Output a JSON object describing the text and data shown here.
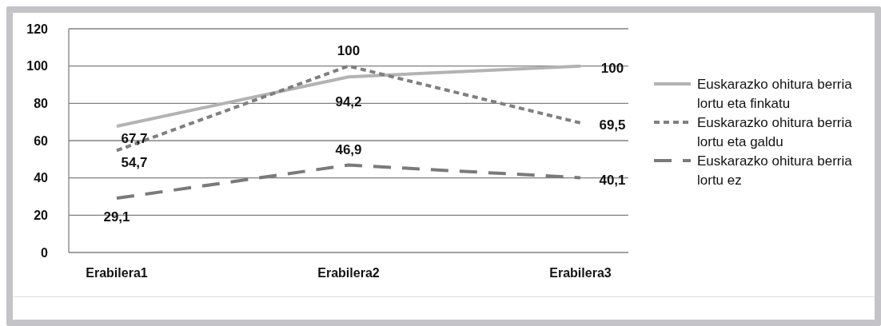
{
  "chart_data": {
    "type": "line",
    "categories": [
      "Erabilera1",
      "Erabilera2",
      "Erabilera3"
    ],
    "series": [
      {
        "name": "Euskarazko ohitura berria lortu eta finkatu",
        "color": "#b3b3b3",
        "line_style": "solid",
        "values": [
          67.7,
          94.2,
          100
        ],
        "value_labels": [
          "67,7",
          "94,2",
          "100"
        ]
      },
      {
        "name": "Euskarazko ohitura berria lortu eta galdu",
        "color": "#7f7f7f",
        "line_style": "dotted",
        "values": [
          54.7,
          100,
          69.5
        ],
        "value_labels": [
          "54,7",
          "100",
          "69,5"
        ]
      },
      {
        "name": "Euskarazko ohitura berria lortu ez",
        "color": "#7a7a7a",
        "line_style": "dashed",
        "values": [
          29.1,
          46.9,
          40.1
        ],
        "value_labels": [
          "29,1",
          "46,9",
          "40,1"
        ]
      }
    ],
    "ylim": [
      0,
      120
    ],
    "yticks": [
      0,
      20,
      40,
      60,
      80,
      100,
      120
    ],
    "grid": "y",
    "legend": "right",
    "marker": "none"
  }
}
